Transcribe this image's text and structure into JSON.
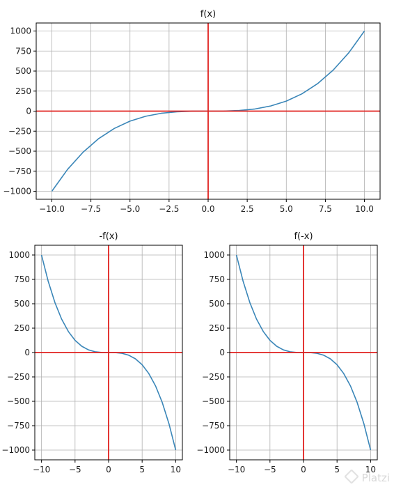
{
  "watermark": "Platzi",
  "colors": {
    "curve": "#3a86b8",
    "axis_lines": "#e0201e",
    "grid": "#b0b0b0",
    "frame": "#000000"
  },
  "chart_data": [
    {
      "type": "line",
      "title": "f(x)",
      "xlabel": "",
      "ylabel": "",
      "x": [
        -10,
        -9,
        -8,
        -7,
        -6,
        -5,
        -4,
        -3,
        -2,
        -1,
        0,
        1,
        2,
        3,
        4,
        5,
        6,
        7,
        8,
        9,
        10
      ],
      "series": [
        {
          "values": [
            -1000,
            -729,
            -512,
            -343,
            -216,
            -125,
            -64,
            -27,
            -8,
            -1,
            0,
            1,
            8,
            27,
            64,
            125,
            216,
            343,
            512,
            729,
            1000
          ]
        }
      ],
      "xlim": [
        -11,
        11
      ],
      "ylim": [
        -1100,
        1100
      ],
      "xticks": [
        -10,
        -7.5,
        -5,
        -2.5,
        0,
        2.5,
        5,
        7.5,
        10
      ],
      "xtick_labels": [
        "−10.0",
        "−7.5",
        "−5.0",
        "−2.5",
        "0.0",
        "2.5",
        "5.0",
        "7.5",
        "10.0"
      ],
      "yticks": [
        1000,
        750,
        500,
        250,
        0,
        -250,
        -500,
        -750,
        -1000
      ],
      "ytick_labels": [
        "1000",
        "750",
        "500",
        "250",
        "0",
        "−250",
        "−500",
        "−750",
        "−1000"
      ],
      "grid": true,
      "reference_lines": {
        "x": 0,
        "y": 0
      }
    },
    {
      "type": "line",
      "title": "-f(x)",
      "xlabel": "",
      "ylabel": "",
      "x": [
        -10,
        -9,
        -8,
        -7,
        -6,
        -5,
        -4,
        -3,
        -2,
        -1,
        0,
        1,
        2,
        3,
        4,
        5,
        6,
        7,
        8,
        9,
        10
      ],
      "series": [
        {
          "values": [
            1000,
            729,
            512,
            343,
            216,
            125,
            64,
            27,
            8,
            1,
            0,
            -1,
            -8,
            -27,
            -64,
            -125,
            -216,
            -343,
            -512,
            -729,
            -1000
          ]
        }
      ],
      "xlim": [
        -11,
        11
      ],
      "ylim": [
        -1100,
        1100
      ],
      "xticks": [
        -10,
        -5,
        0,
        5,
        10
      ],
      "xtick_labels": [
        "−10",
        "−5",
        "0",
        "5",
        "10"
      ],
      "yticks": [
        1000,
        750,
        500,
        250,
        0,
        -250,
        -500,
        -750,
        -1000
      ],
      "ytick_labels": [
        "1000",
        "750",
        "500",
        "250",
        "0",
        "−250",
        "−500",
        "−750",
        "−1000"
      ],
      "grid": true,
      "reference_lines": {
        "x": 0,
        "y": 0
      }
    },
    {
      "type": "line",
      "title": "f(-x)",
      "xlabel": "",
      "ylabel": "",
      "x": [
        -10,
        -9,
        -8,
        -7,
        -6,
        -5,
        -4,
        -3,
        -2,
        -1,
        0,
        1,
        2,
        3,
        4,
        5,
        6,
        7,
        8,
        9,
        10
      ],
      "series": [
        {
          "values": [
            1000,
            729,
            512,
            343,
            216,
            125,
            64,
            27,
            8,
            1,
            0,
            -1,
            -8,
            -27,
            -64,
            -125,
            -216,
            -343,
            -512,
            -729,
            -1000
          ]
        }
      ],
      "xlim": [
        -11,
        11
      ],
      "ylim": [
        -1100,
        1100
      ],
      "xticks": [
        -10,
        -5,
        0,
        5,
        10
      ],
      "xtick_labels": [
        "−10",
        "−5",
        "0",
        "5",
        "10"
      ],
      "yticks": [
        1000,
        750,
        500,
        250,
        0,
        -250,
        -500,
        -750,
        -1000
      ],
      "ytick_labels": [
        "1000",
        "750",
        "500",
        "250",
        "0",
        "−250",
        "−500",
        "−750",
        "−1000"
      ],
      "grid": true,
      "reference_lines": {
        "x": 0,
        "y": 0
      }
    }
  ]
}
